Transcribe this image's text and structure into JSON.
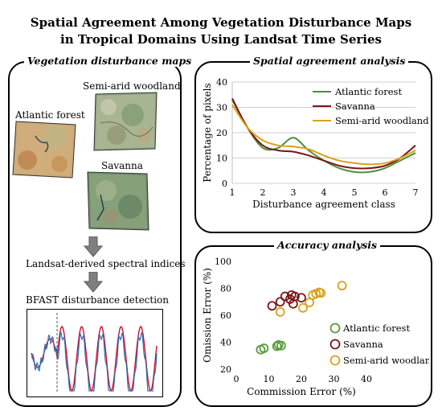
{
  "title_line1": "Spatial Agreement Among Vegetation Disturbance Maps",
  "title_line2": "in Tropical Domains Using Landsat Time Series",
  "left_panel": {
    "label": "Vegetation disturbance maps",
    "map_semi_arid": "Semi-arid woodland",
    "map_atlantic": "Atlantic forest",
    "map_savanna": "Savanna",
    "step1": "Landsat-derived spectral indices",
    "step2": "BFAST disturbance detection"
  },
  "bfast_colors": {
    "original": "#2e6fb5",
    "fitted": "#d0102a",
    "breakpoint": "#555555"
  },
  "spatial_panel": {
    "label": "Spatial agreement analysis"
  },
  "accuracy_panel": {
    "label": "Accuracy analysis"
  },
  "chart_data": [
    {
      "type": "line",
      "xlabel": "Disturbance agreement class",
      "ylabel": "Percentage of pixels",
      "xlim": [
        1,
        7
      ],
      "ylim": [
        0,
        40
      ],
      "x_ticks": [
        "1",
        "2",
        "3",
        "4",
        "5",
        "6",
        "7"
      ],
      "y_ticks": [
        "0",
        "10",
        "20",
        "30",
        "40"
      ],
      "grid": "horizontal",
      "legend": "top-right",
      "series": [
        {
          "name": "Atlantic forest",
          "color": "#4f8f3a",
          "x": [
            1,
            1.5,
            2,
            2.5,
            3,
            3.5,
            4,
            4.5,
            5,
            5.5,
            6,
            6.5,
            7
          ],
          "values": [
            33,
            22,
            14,
            14,
            18,
            13,
            9,
            6,
            4.5,
            4.5,
            6,
            9,
            12
          ]
        },
        {
          "name": "Savanna",
          "color": "#7a1616",
          "x": [
            1,
            1.5,
            2,
            2.5,
            3,
            3.5,
            4,
            4.5,
            5,
            5.5,
            6,
            6.5,
            7
          ],
          "values": [
            33.5,
            22,
            15,
            13,
            12.5,
            11,
            9,
            7,
            6,
            6,
            7,
            10,
            15
          ]
        },
        {
          "name": "Semi-arid woodland",
          "color": "#d9a21b",
          "x": [
            1,
            1.5,
            2,
            2.5,
            3,
            3.5,
            4,
            4.5,
            5,
            5.5,
            6,
            6.5,
            7
          ],
          "values": [
            31,
            22,
            17,
            15,
            14.5,
            13.5,
            11,
            9,
            8,
            7.5,
            8,
            10,
            13
          ]
        }
      ]
    },
    {
      "type": "scatter",
      "xlabel": "Commission Error (%)",
      "ylabel": "Omission Error (%)",
      "xlim": [
        0,
        40
      ],
      "ylim": [
        20,
        100
      ],
      "x_ticks": [
        "0",
        "10",
        "20",
        "30",
        "40"
      ],
      "y_ticks": [
        "20",
        "40",
        "60",
        "80",
        "100"
      ],
      "grid": "none",
      "legend": "right",
      "series": [
        {
          "name": "Atlantic forest",
          "color": "#5a9a3f",
          "points": [
            [
              7.5,
              34.5
            ],
            [
              8.5,
              35.5
            ],
            [
              12.5,
              37
            ],
            [
              13,
              38
            ],
            [
              13.8,
              37.5
            ]
          ]
        },
        {
          "name": "Savanna",
          "color": "#7a1616",
          "points": [
            [
              11,
              67
            ],
            [
              13.5,
              70
            ],
            [
              15,
              74
            ],
            [
              16.5,
              72
            ],
            [
              17,
              75
            ],
            [
              18,
              74
            ],
            [
              17.5,
              68.5
            ],
            [
              20,
              73
            ]
          ]
        },
        {
          "name": "Semi-arid woodland",
          "color": "#d9a21b",
          "points": [
            [
              13.5,
              62.5
            ],
            [
              20.5,
              65.5
            ],
            [
              22.5,
              69.5
            ],
            [
              23.5,
              75
            ],
            [
              24.5,
              76
            ],
            [
              25.5,
              77
            ],
            [
              26,
              76.5
            ],
            [
              32.5,
              82
            ]
          ]
        }
      ]
    }
  ]
}
